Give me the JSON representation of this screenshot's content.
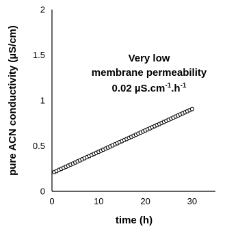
{
  "chart_data": {
    "type": "scatter",
    "title": "",
    "xlabel": "time (h)",
    "ylabel": "pure ACN conductivity (µS/cm)",
    "xlim": [
      0,
      35
    ],
    "ylim": [
      0,
      2
    ],
    "xticks": [
      "0",
      "10",
      "20",
      "30"
    ],
    "yticks": [
      "0",
      "0.5",
      "1",
      "1.5",
      "2"
    ],
    "grid": false,
    "legend": "none",
    "annotation": {
      "line1": "Very low",
      "line2": "membrane permeability",
      "line3_main": "0.02 µS.cm",
      "line3_sup1": "-1",
      "line3_mid": ".h",
      "line3_sup2": "-1"
    },
    "series": [
      {
        "marker": "open-circle",
        "color": "#000000",
        "x_start": 0.5,
        "x_end": 30,
        "x_step": 0.5,
        "y_intercept": 0.2,
        "slope": 0.0235
      }
    ]
  }
}
